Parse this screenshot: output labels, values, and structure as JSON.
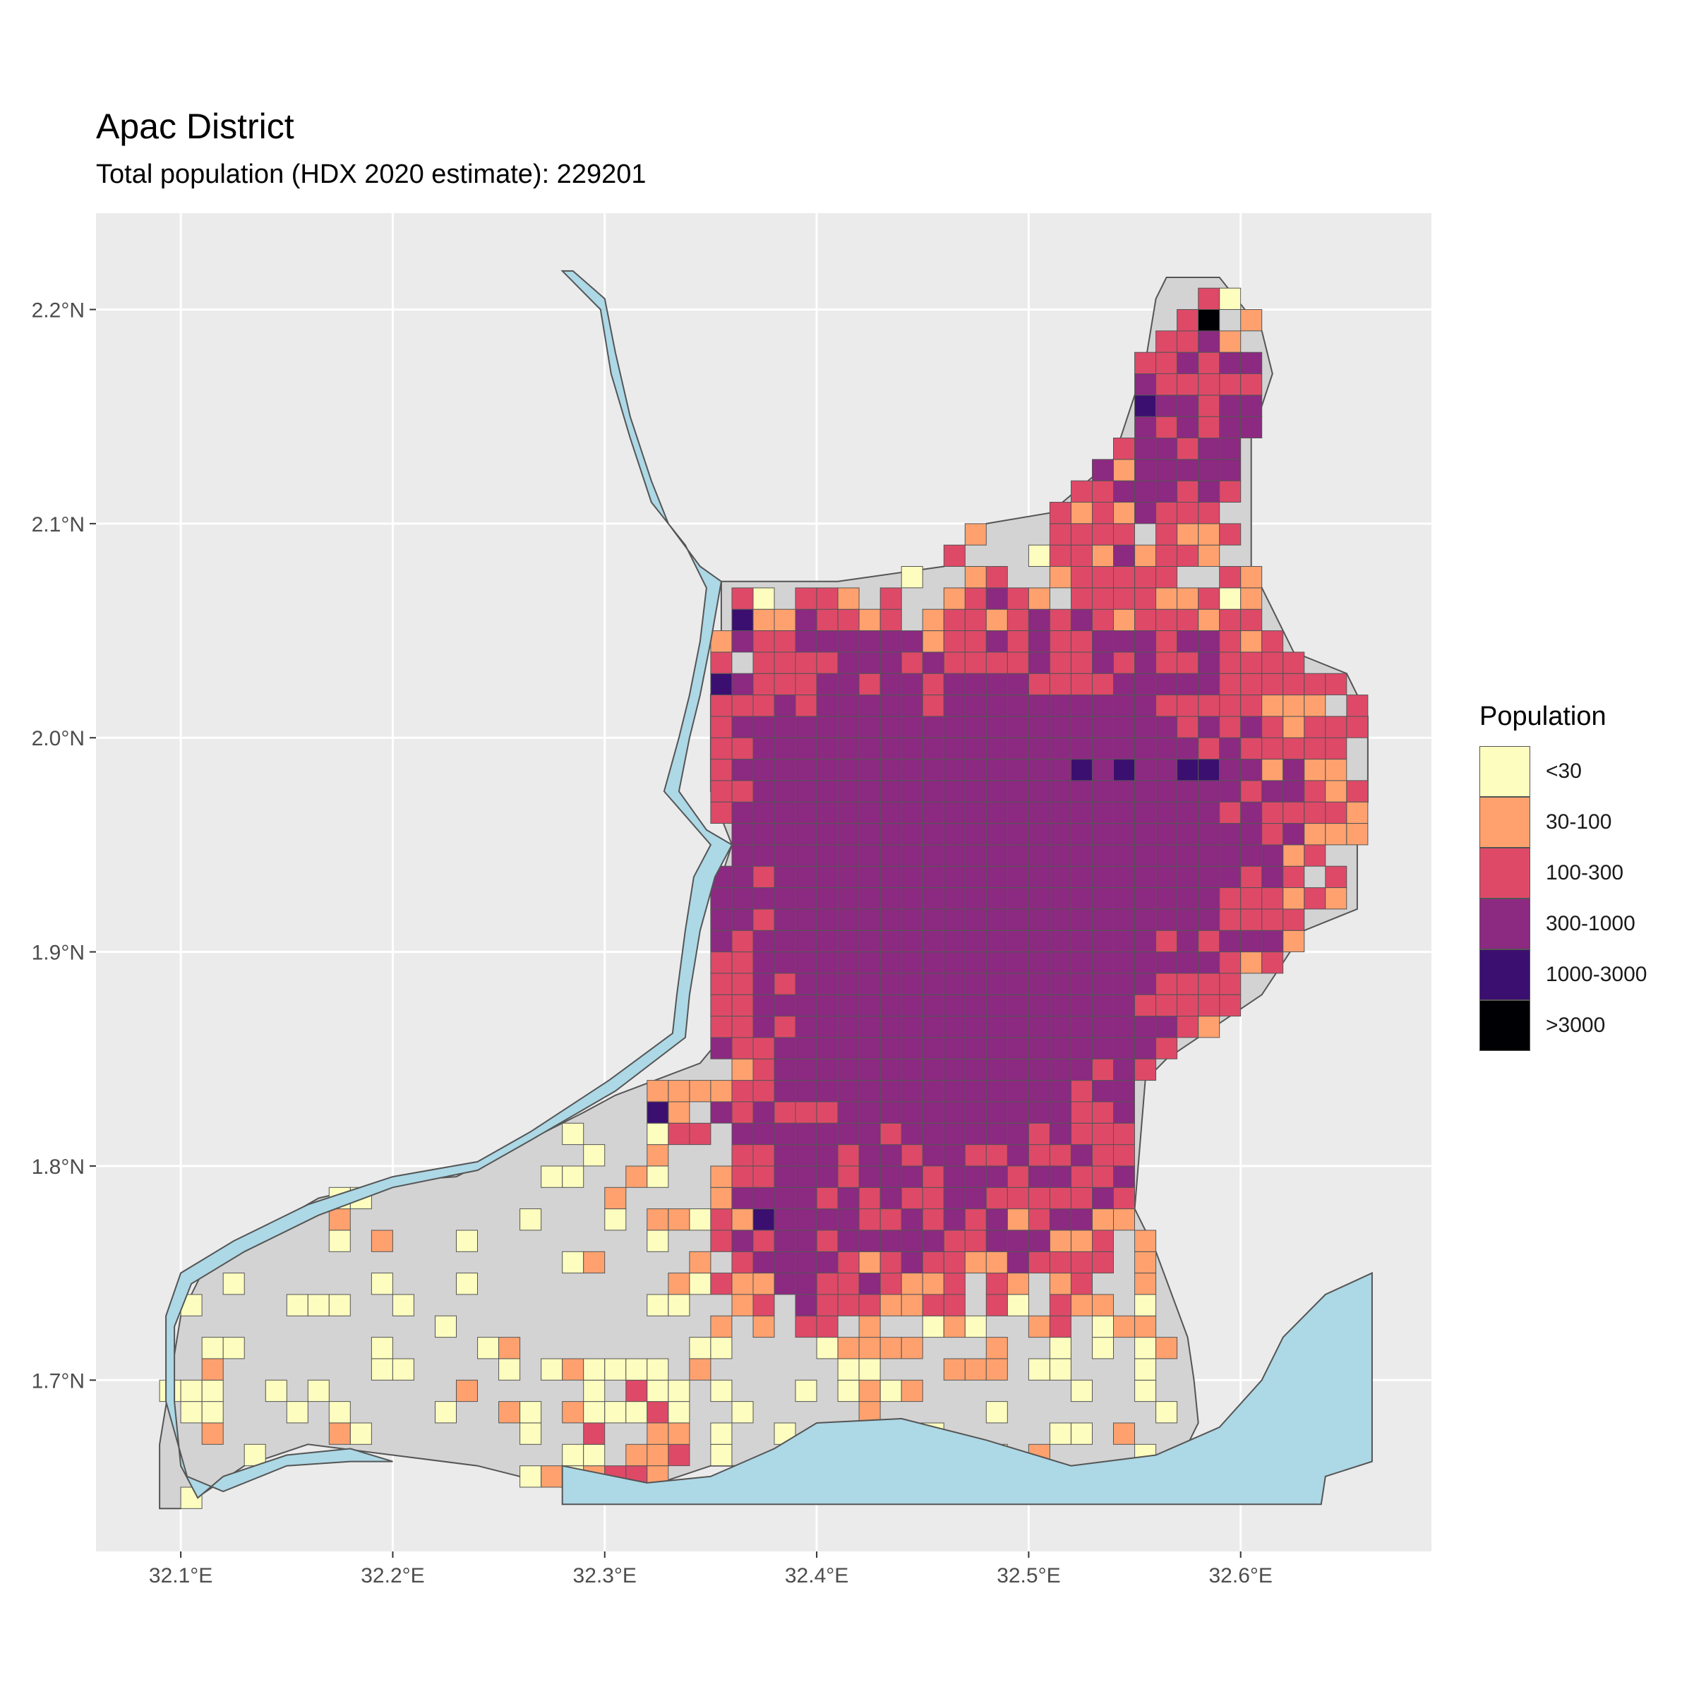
{
  "title": "Apac District",
  "subtitle": "Total population (HDX 2020 estimate): 229201",
  "legend": {
    "title": "Population",
    "items": [
      {
        "label": "<30",
        "color": "#FCFDBF"
      },
      {
        "label": "30-100",
        "color": "#FEA16E"
      },
      {
        "label": "100-300",
        "color": "#DE4968"
      },
      {
        "label": "300-1000",
        "color": "#8C2981"
      },
      {
        "label": "1000-3000",
        "color": "#3B0F70"
      },
      {
        "label": ">3000",
        "color": "#000004"
      }
    ]
  },
  "axes": {
    "x_ticks": [
      "32.1°E",
      "32.2°E",
      "32.3°E",
      "32.4°E",
      "32.5°E",
      "32.6°E"
    ],
    "y_ticks": [
      "2.2°N",
      "2.1°N",
      "2.0°N",
      "1.9°N",
      "1.8°N",
      "1.7°N"
    ],
    "x_tick_values": [
      32.1,
      32.2,
      32.3,
      32.4,
      32.5,
      32.6
    ],
    "y_tick_values": [
      2.2,
      2.1,
      2.0,
      1.9,
      1.8,
      1.7
    ],
    "x_range": [
      32.06,
      32.69
    ],
    "y_range": [
      1.62,
      2.245
    ]
  },
  "colors": {
    "panel": "#EBEBEB",
    "grid": "#FFFFFF",
    "land": "#D3D3D3",
    "water": "#ADD8E6"
  },
  "chart_data": {
    "type": "heatmap",
    "title": "Apac District",
    "subtitle": "Total population (HDX 2020 estimate): 229201",
    "legend_title": "Population",
    "legend_position": "right",
    "grid": true,
    "total_population": 229201,
    "classes": [
      "<30",
      "30-100",
      "100-300",
      "300-1000",
      "1000-3000",
      ">3000"
    ],
    "xlim": [
      32.06,
      32.69
    ],
    "ylim": [
      1.62,
      2.245
    ],
    "cell_size_deg": 0.01,
    "notable_cells": [
      {
        "lon": 32.585,
        "lat": 2.195,
        "class": ">3000"
      },
      {
        "lon": 32.525,
        "lat": 1.985,
        "class": "1000-3000"
      },
      {
        "lon": 32.545,
        "lat": 1.985,
        "class": "1000-3000"
      },
      {
        "lon": 32.575,
        "lat": 1.985,
        "class": "1000-3000"
      },
      {
        "lon": 32.585,
        "lat": 1.985,
        "class": "1000-3000"
      },
      {
        "lon": 32.375,
        "lat": 1.775,
        "class": "1000-3000"
      },
      {
        "lon": 32.325,
        "lat": 1.825,
        "class": "1000-3000"
      },
      {
        "lon": 32.355,
        "lat": 2.025,
        "class": "1000-3000"
      },
      {
        "lon": 32.365,
        "lat": 2.055,
        "class": "1000-3000"
      },
      {
        "lon": 32.555,
        "lat": 2.155,
        "class": "1000-3000"
      }
    ]
  }
}
